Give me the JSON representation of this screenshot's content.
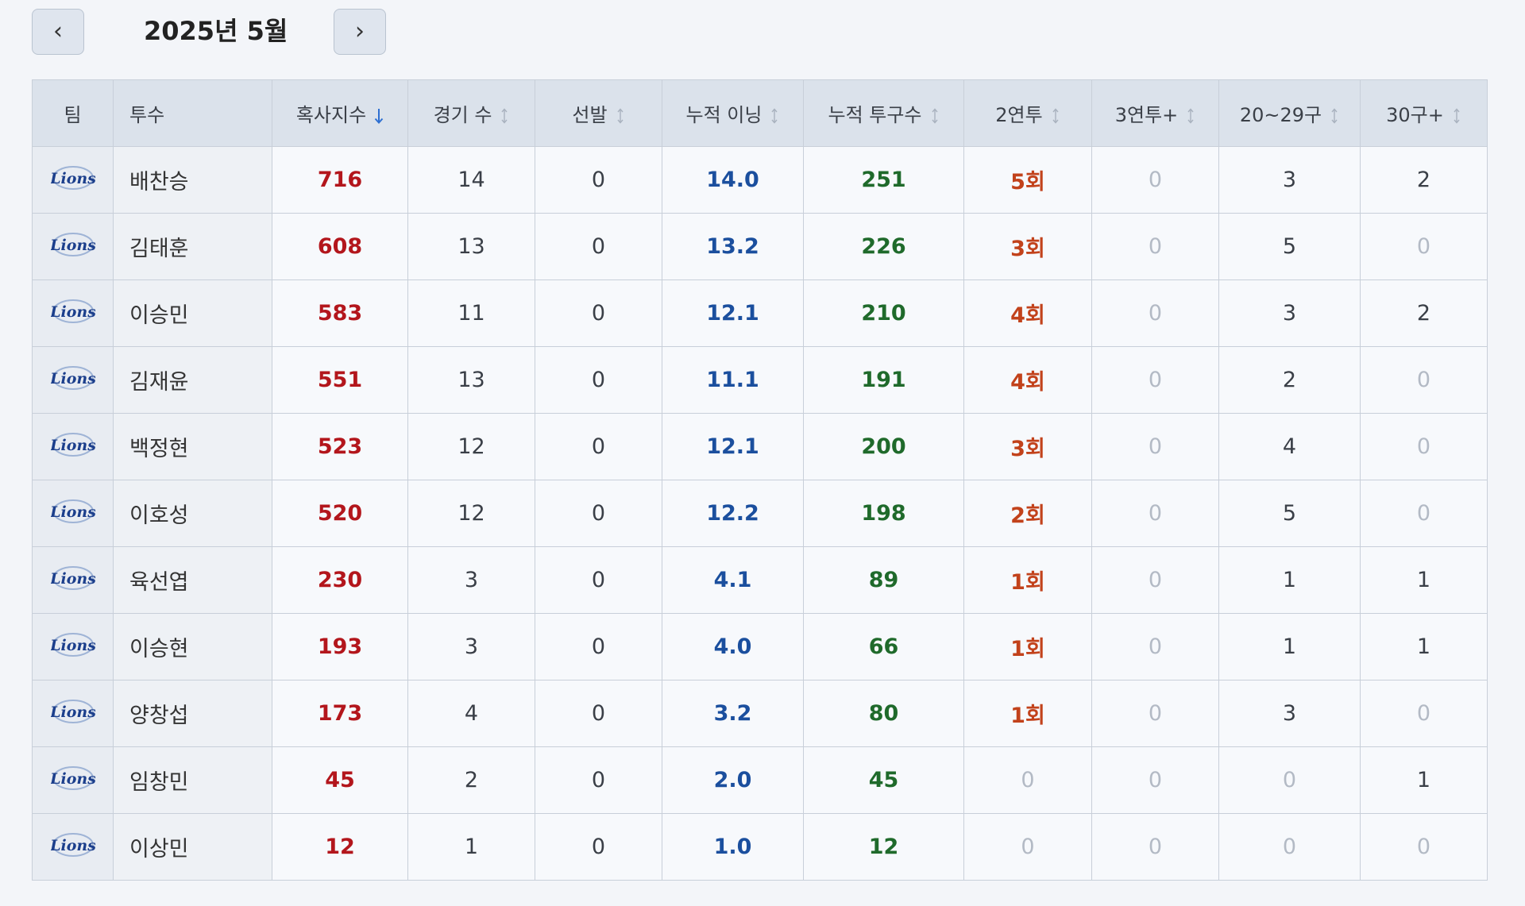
{
  "header": {
    "title": "2025년 5월",
    "prev": "‹",
    "next": "›"
  },
  "table": {
    "columns": [
      {
        "label": "팀",
        "align": "center"
      },
      {
        "label": "투수",
        "align": "left"
      },
      {
        "label": "혹사지수",
        "sort": "desc",
        "color": "#b3161c",
        "bold": true
      },
      {
        "label": "경기 수",
        "sort": "none",
        "color": "#3a3f47"
      },
      {
        "label": "선발",
        "sort": "none",
        "color": "#3a3f47"
      },
      {
        "label": "누적 이닝",
        "sort": "none",
        "color": "#1b4f9e",
        "bold": true
      },
      {
        "label": "누적 투구수",
        "sort": "none",
        "color": "#1f6a2b",
        "bold": true
      },
      {
        "label": "2연투",
        "sort": "none",
        "color": "#c2421b",
        "bold": true,
        "dim_zero": true
      },
      {
        "label": "3연투+",
        "sort": "none",
        "color": "#3a3f47",
        "dim_zero": true
      },
      {
        "label": "20~29구",
        "sort": "none",
        "color": "#3a3f47",
        "dim_zero": true
      },
      {
        "label": "30구+",
        "sort": "none",
        "color": "#3a3f47",
        "dim_zero": true
      }
    ],
    "rows": [
      {
        "team": "Lions",
        "pitcher": "배찬승",
        "cells": [
          "716",
          "14",
          "0",
          "14.0",
          "251",
          "5회",
          "0",
          "3",
          "2"
        ]
      },
      {
        "team": "Lions",
        "pitcher": "김태훈",
        "cells": [
          "608",
          "13",
          "0",
          "13.2",
          "226",
          "3회",
          "0",
          "5",
          "0"
        ]
      },
      {
        "team": "Lions",
        "pitcher": "이승민",
        "cells": [
          "583",
          "11",
          "0",
          "12.1",
          "210",
          "4회",
          "0",
          "3",
          "2"
        ]
      },
      {
        "team": "Lions",
        "pitcher": "김재윤",
        "cells": [
          "551",
          "13",
          "0",
          "11.1",
          "191",
          "4회",
          "0",
          "2",
          "0"
        ]
      },
      {
        "team": "Lions",
        "pitcher": "백정현",
        "cells": [
          "523",
          "12",
          "0",
          "12.1",
          "200",
          "3회",
          "0",
          "4",
          "0"
        ]
      },
      {
        "team": "Lions",
        "pitcher": "이호성",
        "cells": [
          "520",
          "12",
          "0",
          "12.2",
          "198",
          "2회",
          "0",
          "5",
          "0"
        ]
      },
      {
        "team": "Lions",
        "pitcher": "육선엽",
        "cells": [
          "230",
          "3",
          "0",
          "4.1",
          "89",
          "1회",
          "0",
          "1",
          "1"
        ]
      },
      {
        "team": "Lions",
        "pitcher": "이승현",
        "cells": [
          "193",
          "3",
          "0",
          "4.0",
          "66",
          "1회",
          "0",
          "1",
          "1"
        ]
      },
      {
        "team": "Lions",
        "pitcher": "양창섭",
        "cells": [
          "173",
          "4",
          "0",
          "3.2",
          "80",
          "1회",
          "0",
          "3",
          "0"
        ]
      },
      {
        "team": "Lions",
        "pitcher": "임창민",
        "cells": [
          "45",
          "2",
          "0",
          "2.0",
          "45",
          "0",
          "0",
          "0",
          "1"
        ]
      },
      {
        "team": "Lions",
        "pitcher": "이상민",
        "cells": [
          "12",
          "1",
          "0",
          "1.0",
          "12",
          "0",
          "0",
          "0",
          "0"
        ]
      }
    ]
  }
}
